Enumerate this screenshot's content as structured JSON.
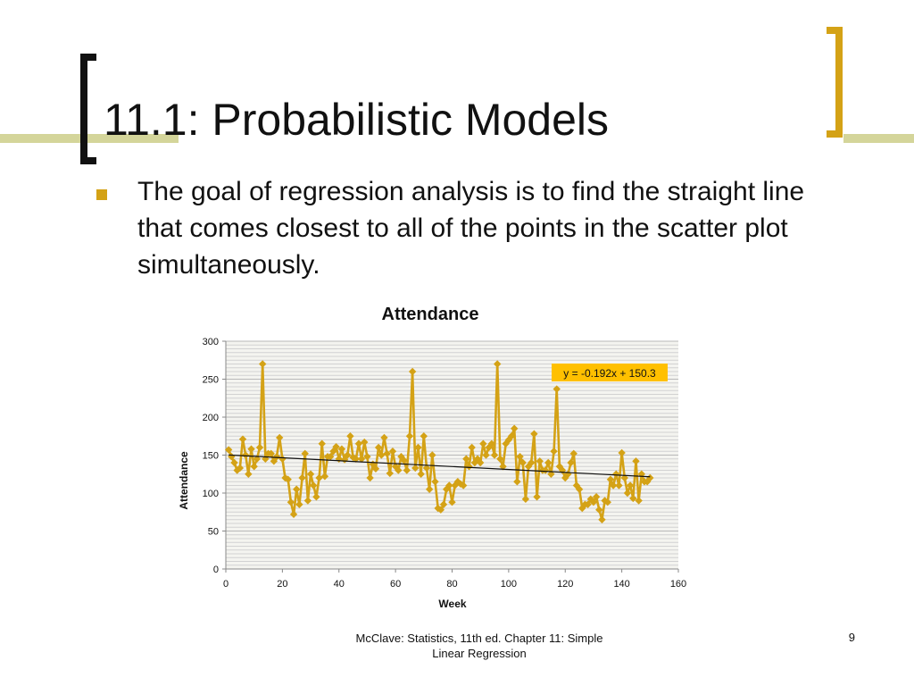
{
  "slide": {
    "title": "11.1: Probabilistic Models",
    "bullet": "The goal of regression analysis is to find the straight line that comes closest to all of the points in the scatter plot simultaneously.",
    "footer": "McClave: Statistics, 11th ed. Chapter 11: Simple Linear Regression",
    "page_number": "9",
    "colors": {
      "accent": "#d4a216",
      "bar": "#d4d59a",
      "series": "#d4a216",
      "equation_box": "#ffc000"
    }
  },
  "chart_data": {
    "type": "line",
    "title": "Attendance",
    "xlabel": "Week",
    "ylabel": "Attendance",
    "xlim": [
      0,
      160
    ],
    "ylim": [
      0,
      300
    ],
    "xticks": [
      0,
      20,
      40,
      60,
      80,
      100,
      120,
      140,
      160
    ],
    "yticks": [
      0,
      50,
      100,
      150,
      200,
      250,
      300
    ],
    "grid": true,
    "markers": "diamond",
    "series": [
      {
        "x": [
          1,
          2,
          3,
          4,
          5,
          6,
          7,
          8,
          9,
          10,
          11,
          12,
          13,
          14,
          15,
          16,
          17,
          18,
          19,
          20,
          21,
          22,
          23,
          24,
          25,
          26,
          27,
          28,
          29,
          30,
          31,
          32,
          33,
          34,
          35,
          36,
          37,
          38,
          39,
          40,
          41,
          42,
          43,
          44,
          45,
          46,
          47,
          48,
          49,
          50,
          51,
          52,
          53,
          54,
          55,
          56,
          57,
          58,
          59,
          60,
          61,
          62,
          63,
          64,
          65,
          66,
          67,
          68,
          69,
          70,
          71,
          72,
          73,
          74,
          75,
          76,
          77,
          78,
          79,
          80,
          81,
          82,
          83,
          84,
          85,
          86,
          87,
          88,
          89,
          90,
          91,
          92,
          93,
          94,
          95,
          96,
          97,
          98,
          99,
          100,
          101,
          102,
          103,
          104,
          105,
          106,
          107,
          108,
          109,
          110,
          111,
          112,
          113,
          114,
          115,
          116,
          117,
          118,
          119,
          120,
          121,
          122,
          123,
          124,
          125,
          126,
          127,
          128,
          129,
          130,
          131,
          132,
          133,
          134,
          135,
          136,
          137,
          138,
          139,
          140,
          141,
          142,
          143,
          144,
          145,
          146,
          147,
          148,
          149,
          150
        ],
        "y": [
          157,
          148,
          140,
          130,
          133,
          171,
          150,
          125,
          158,
          135,
          145,
          160,
          270,
          145,
          152,
          152,
          142,
          148,
          173,
          145,
          120,
          118,
          88,
          72,
          105,
          85,
          120,
          152,
          90,
          125,
          110,
          95,
          120,
          165,
          122,
          148,
          148,
          155,
          161,
          145,
          158,
          144,
          150,
          175,
          147,
          145,
          165,
          145,
          167,
          148,
          120,
          138,
          132,
          160,
          150,
          173,
          152,
          126,
          155,
          135,
          130,
          148,
          143,
          130,
          175,
          260,
          133,
          160,
          125,
          175,
          133,
          105,
          150,
          115,
          80,
          78,
          85,
          105,
          110,
          88,
          110,
          115,
          112,
          110,
          145,
          135,
          160,
          140,
          145,
          140,
          165,
          150,
          160,
          165,
          150,
          270,
          145,
          135,
          165,
          170,
          175,
          185,
          115,
          148,
          140,
          92,
          135,
          140,
          178,
          95,
          142,
          130,
          130,
          140,
          125,
          155,
          237,
          135,
          130,
          120,
          125,
          140,
          152,
          110,
          105,
          80,
          85,
          85,
          92,
          88,
          95,
          78,
          65,
          90,
          88,
          118,
          110,
          125,
          110,
          153,
          120,
          100,
          110,
          93,
          142,
          90,
          125,
          115,
          115,
          120
        ]
      }
    ],
    "trendline": {
      "equation": "y = -0.192x + 150.3",
      "slope": -0.192,
      "intercept": 150.3
    }
  }
}
